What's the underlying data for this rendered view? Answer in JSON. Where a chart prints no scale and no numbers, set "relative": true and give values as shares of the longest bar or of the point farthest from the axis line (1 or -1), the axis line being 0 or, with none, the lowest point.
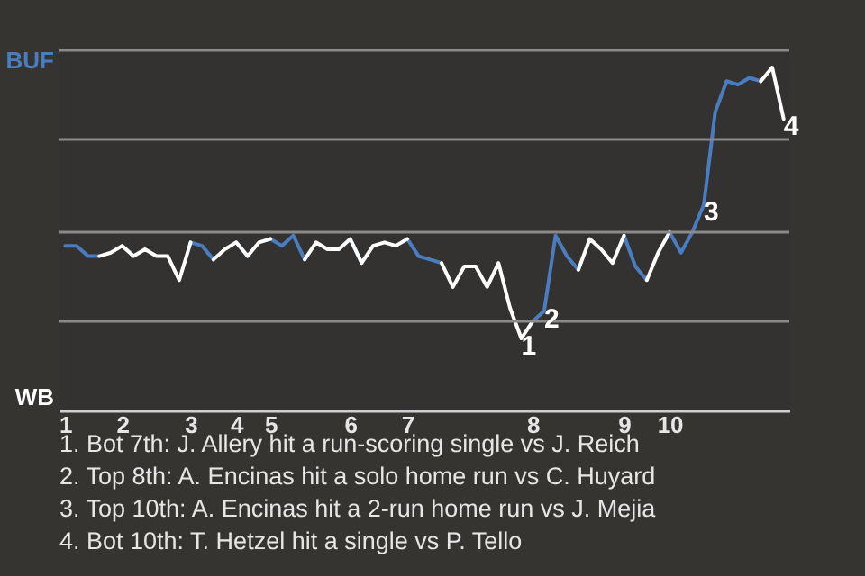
{
  "chart_data": {
    "type": "line",
    "categories": [
      "1",
      null,
      null,
      null,
      null,
      "2",
      null,
      null,
      null,
      null,
      null,
      "3",
      null,
      null,
      null,
      "4",
      null,
      null,
      "5",
      null,
      null,
      null,
      null,
      null,
      null,
      "6",
      null,
      null,
      null,
      null,
      "7",
      null,
      null,
      null,
      null,
      null,
      null,
      null,
      null,
      null,
      null,
      "8",
      null,
      null,
      null,
      null,
      null,
      null,
      null,
      "9",
      null,
      null,
      null,
      "10",
      null,
      null,
      null,
      null,
      null,
      null,
      null,
      null,
      null,
      null
    ],
    "series": [
      {
        "name": "BUF",
        "color": "#4a7cc0",
        "values": [
          0.48,
          0.48,
          0.45,
          0.45,
          null,
          0.48,
          0.45,
          null,
          null,
          null,
          null,
          0.49,
          0.48,
          0.44,
          null,
          0.49,
          0.45,
          null,
          0.5,
          0.48,
          0.51,
          0.44,
          null,
          null,
          null,
          0.5,
          0.43,
          null,
          null,
          null,
          0.5,
          0.45,
          0.44,
          0.43,
          null,
          null,
          null,
          null,
          null,
          null,
          null,
          0.26,
          0.29,
          0.51,
          0.45,
          0.41,
          null,
          null,
          null,
          0.51,
          0.42,
          0.38,
          null,
          0.52,
          0.46,
          0.52,
          0.6,
          0.87,
          0.96,
          0.95,
          0.97,
          0.96,
          null,
          null
        ]
      },
      {
        "name": "WB",
        "color": "#ffffff",
        "values": [
          null,
          null,
          null,
          0.45,
          0.46,
          0.48,
          0.45,
          0.47,
          0.45,
          0.45,
          0.38,
          0.49,
          null,
          0.44,
          0.47,
          0.49,
          0.45,
          0.49,
          0.5,
          null,
          null,
          0.44,
          0.49,
          0.47,
          0.47,
          0.5,
          0.43,
          0.48,
          0.49,
          0.48,
          0.5,
          null,
          null,
          0.43,
          0.36,
          0.42,
          0.42,
          0.36,
          0.43,
          0.3,
          0.21,
          0.26,
          null,
          null,
          null,
          0.41,
          0.5,
          0.47,
          0.43,
          0.51,
          null,
          0.38,
          0.46,
          0.52,
          null,
          null,
          null,
          null,
          null,
          null,
          null,
          0.96,
          1,
          0.85
        ]
      }
    ],
    "relative": true,
    "ref_lines": [
      {
        "axis": "y",
        "value": 0.26,
        "color": "#8a8a8a"
      },
      {
        "axis": "y",
        "value": 0.52,
        "color": "#8a8a8a"
      },
      {
        "axis": "y",
        "value": 0.79,
        "color": "#8a8a8a"
      },
      {
        "axis": "y",
        "value": 1.05,
        "color": "#8a8a8a"
      }
    ],
    "annotations": [
      {
        "text": "1",
        "y": 0.21
      },
      {
        "text": "2",
        "y": 0.29
      },
      {
        "text": "3",
        "y": 0.6
      },
      {
        "text": "4",
        "y": 0.85
      },
      "1. Bot 7th: J. Allery hit a run-scoring single vs J. Reich",
      "2. Top 8th: A. Encinas hit a solo home run vs C. Huyard",
      "3. Top 10th: A. Encinas hit a 2-run home run vs J. Mejia",
      "4. Bot 10th: T. Hetzel hit a single vs P. Tello"
    ]
  }
}
